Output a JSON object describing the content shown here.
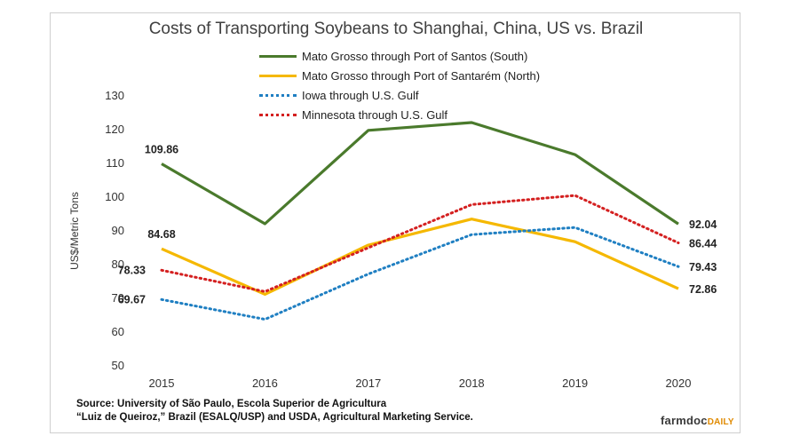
{
  "chart_data": {
    "type": "line",
    "title": "Costs of Transporting Soybeans to Shanghai, China, US vs. Brazil",
    "ylabel": "US$/Metric Tons",
    "xlabel": "",
    "categories": [
      "2015",
      "2016",
      "2017",
      "2018",
      "2019",
      "2020"
    ],
    "ylim": [
      50,
      130
    ],
    "yticks": [
      "50",
      "60",
      "70",
      "80",
      "90",
      "100",
      "110",
      "120",
      "130"
    ],
    "grid": false,
    "legend_position": "top",
    "series": [
      {
        "name": "Mato Grosso through Port of Santos (South)",
        "color": "#4a7a2c",
        "style": "solid",
        "values": [
          109.86,
          92.1,
          119.8,
          122.1,
          112.6,
          92.04
        ]
      },
      {
        "name": "Mato Grosso through Port of Santarém (North)",
        "color": "#f5b800",
        "style": "solid",
        "values": [
          84.68,
          71.2,
          85.8,
          93.5,
          86.8,
          72.86
        ]
      },
      {
        "name": "Iowa through U.S. Gulf",
        "color": "#1f7fc2",
        "style": "dotted",
        "values": [
          69.67,
          63.8,
          77.2,
          88.9,
          91.0,
          79.43
        ]
      },
      {
        "name": "Minnesota through U.S. Gulf",
        "color": "#d42020",
        "style": "dotted",
        "values": [
          78.33,
          72.0,
          85.0,
          97.8,
          100.5,
          86.44
        ]
      }
    ],
    "annotations": [
      {
        "series": 0,
        "index": 0,
        "text": "109.86",
        "pos": "above"
      },
      {
        "series": 1,
        "index": 0,
        "text": "84.68",
        "pos": "above"
      },
      {
        "series": 3,
        "index": 0,
        "text": "78.33",
        "pos": "left"
      },
      {
        "series": 2,
        "index": 0,
        "text": "69.67",
        "pos": "left"
      },
      {
        "series": 0,
        "index": 5,
        "text": "92.04",
        "pos": "right"
      },
      {
        "series": 3,
        "index": 5,
        "text": "86.44",
        "pos": "right"
      },
      {
        "series": 2,
        "index": 5,
        "text": "79.43",
        "pos": "right"
      },
      {
        "series": 1,
        "index": 5,
        "text": "72.86",
        "pos": "right"
      }
    ]
  },
  "source": {
    "line1": "Source: University of São Paulo, Escola Superior de Agricultura",
    "line2": "“Luiz de Queiroz,” Brazil (ESALQ/USP)  and USDA, Agricultural Marketing Service."
  },
  "brand": {
    "main": "farmdoc",
    "accent": "DAILY"
  }
}
